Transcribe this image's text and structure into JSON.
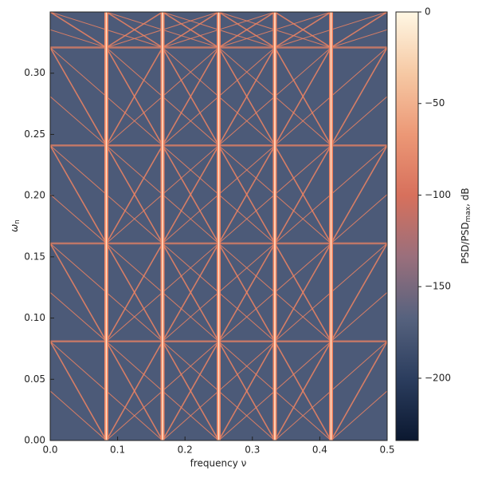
{
  "chart_data": {
    "type": "heatmap",
    "xlabel": "frequency ν",
    "ylabel": "ω",
    "ylabel_sub": "n",
    "colorbar_label": "PSD/PSD",
    "colorbar_label_sub": "max",
    "colorbar_label_tail": ", dB",
    "xlim": [
      0,
      0.5
    ],
    "ylim": [
      0,
      0.35
    ],
    "xticks": [
      {
        "value": 0,
        "label": "0.0"
      },
      0.1,
      0.2,
      0.3,
      0.4,
      0.5
    ],
    "yticks": [
      {
        "value": 0,
        "label": "0.00"
      },
      0.05,
      {
        "value": 0.1,
        "label": "0.10"
      },
      0.15,
      {
        "value": 0.2,
        "label": "0.20"
      },
      0.25,
      {
        "value": 0.3,
        "label": "0.30"
      }
    ],
    "clim": [
      -234,
      0
    ],
    "cticks": [
      0,
      {
        "value": -50,
        "label": "−50"
      },
      {
        "value": -100,
        "label": "−100"
      },
      {
        "value": -150,
        "label": "−150"
      },
      {
        "value": -200,
        "label": "−200"
      }
    ],
    "colormap": [
      "#0b1830",
      "#2b3d5e",
      "#56627e",
      "#9a6f7c",
      "#d7705c",
      "#ec9876",
      "#f6c9a4",
      "#fff7e4"
    ],
    "background": "#4c5a78",
    "ridge_color": "#f08462",
    "ridge_core": "#ffe6cc",
    "ridges_x": [
      0.0833,
      0.1667,
      0.25,
      0.3333,
      0.4167
    ],
    "ridges_y": [
      0.081,
      0.161,
      0.241,
      0.321
    ]
  }
}
